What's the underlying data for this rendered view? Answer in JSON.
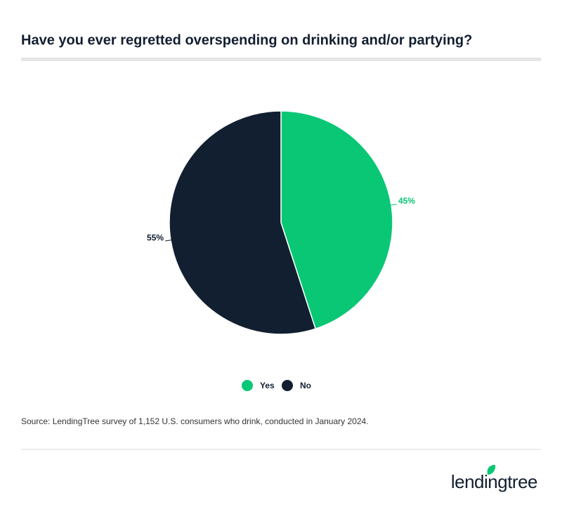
{
  "chart_data": {
    "type": "pie",
    "title": "Have you ever regretted overspending on drinking and/or partying?",
    "categories": [
      "Yes",
      "No"
    ],
    "values": [
      45,
      55
    ],
    "value_labels": [
      "45%",
      "55%"
    ],
    "colors": [
      "#0ac775",
      "#121f30"
    ],
    "legend": "bottom",
    "source": "Source: LendingTree survey of 1,152 U.S. consumers who drink, conducted in January 2024.",
    "logo": "lendingtree"
  }
}
